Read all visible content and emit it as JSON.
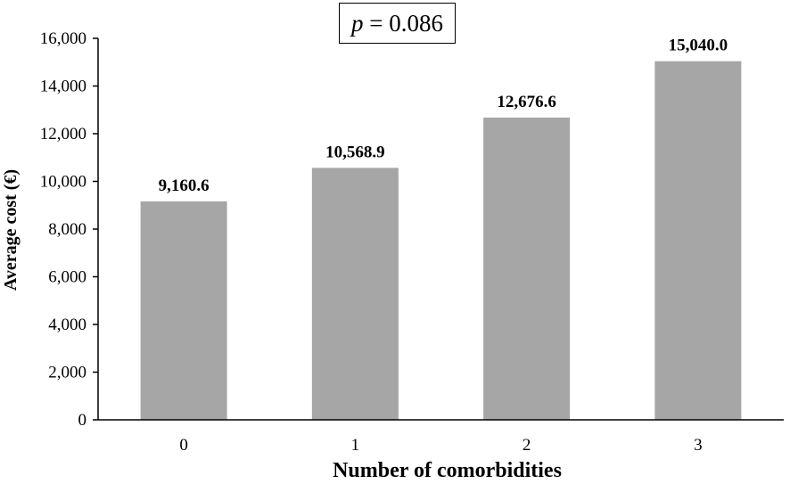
{
  "annotation": {
    "variable": "p",
    "operator": "=",
    "value": "0.086"
  },
  "chart_data": {
    "type": "bar",
    "categories": [
      "0",
      "1",
      "2",
      "3"
    ],
    "values": [
      9160.6,
      10568.9,
      12676.6,
      15040.0
    ],
    "value_labels": [
      "9,160.6",
      "10,568.9",
      "12,676.6",
      "15,040.0"
    ],
    "title": "",
    "xlabel": "Number of comorbidities",
    "ylabel": "Average cost (€)",
    "ylim": [
      0,
      16000
    ],
    "yticks": [
      0,
      2000,
      4000,
      6000,
      8000,
      10000,
      12000,
      14000,
      16000
    ],
    "ytick_labels": [
      "0",
      "2,000",
      "4,000",
      "6,000",
      "8,000",
      "10,000",
      "12,000",
      "14,000",
      "16,000"
    ],
    "grid": false,
    "legend": "none",
    "bar_color": "#a6a6a6"
  }
}
